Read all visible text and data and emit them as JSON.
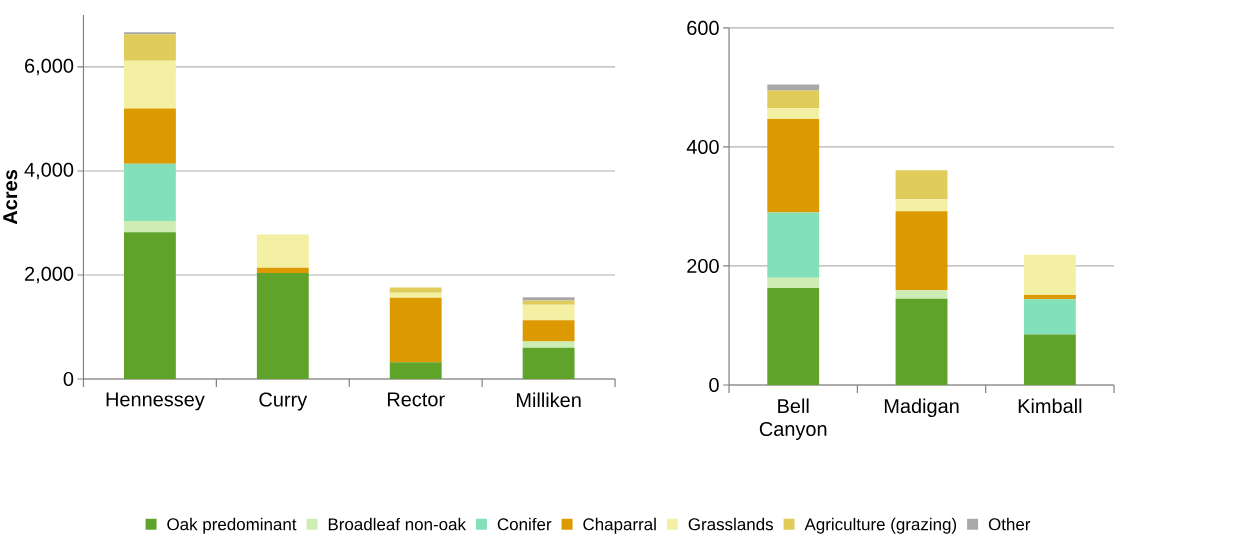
{
  "chart_data": [
    {
      "type": "bar",
      "stacked": true,
      "ylabel": "Acres",
      "categories": [
        "Hennessey",
        "Curry",
        "Rector",
        "Milliken"
      ],
      "series": [
        {
          "name": "Oak predominant",
          "color": "#5fa32a",
          "values": [
            2820,
            2040,
            320,
            600
          ]
        },
        {
          "name": "Broadleaf non-oak",
          "color": "#cdedb4",
          "values": [
            220,
            0,
            null,
            120
          ]
        },
        {
          "name": "Conifer",
          "color": "#84e0b8",
          "values": [
            1100,
            0,
            0,
            0
          ]
        },
        {
          "name": "Chaparral",
          "color": "#dd9900",
          "values": [
            1060,
            100,
            1240,
            410
          ]
        },
        {
          "name": "Grasslands",
          "color": "#f3f0a4",
          "values": [
            920,
            640,
            100,
            300
          ]
        },
        {
          "name": "Agriculture (grazing)",
          "color": "#e0cc5a",
          "values": [
            510,
            0,
            100,
            80
          ]
        },
        {
          "name": "Other",
          "color": "#a8a8a8",
          "values": [
            40,
            null,
            null,
            60
          ]
        }
      ],
      "ylim": [
        0,
        7000
      ],
      "yticks": [
        0,
        {
          "value": 2000,
          "label": "2,000"
        },
        {
          "value": 4000,
          "label": "4,000"
        },
        {
          "value": 6000,
          "label": "6,000"
        }
      ],
      "grid": "y",
      "legend": "bottom"
    },
    {
      "type": "bar",
      "stacked": true,
      "categories": [
        "Bell Canyon",
        "Madigan",
        "Kimball"
      ],
      "series": [
        {
          "color": "#5fa32a",
          "values": [
            163,
            145,
            85
          ]
        },
        {
          "color": "#cdedb4",
          "values": [
            17,
            14,
            null
          ]
        },
        {
          "color": "#84e0b8",
          "values": [
            110,
            0,
            59
          ]
        },
        {
          "color": "#dd9900",
          "values": [
            157,
            133,
            7
          ]
        },
        {
          "color": "#f3f0a4",
          "values": [
            18,
            20,
            68
          ]
        },
        {
          "color": "#e0cc5a",
          "values": [
            30,
            49,
            0
          ]
        },
        {
          "color": "#a8a8a8",
          "values": [
            10,
            0,
            0
          ]
        }
      ],
      "ylim": [
        0,
        600
      ],
      "yticks": [
        0,
        200,
        400,
        600
      ],
      "grid": "y"
    }
  ]
}
